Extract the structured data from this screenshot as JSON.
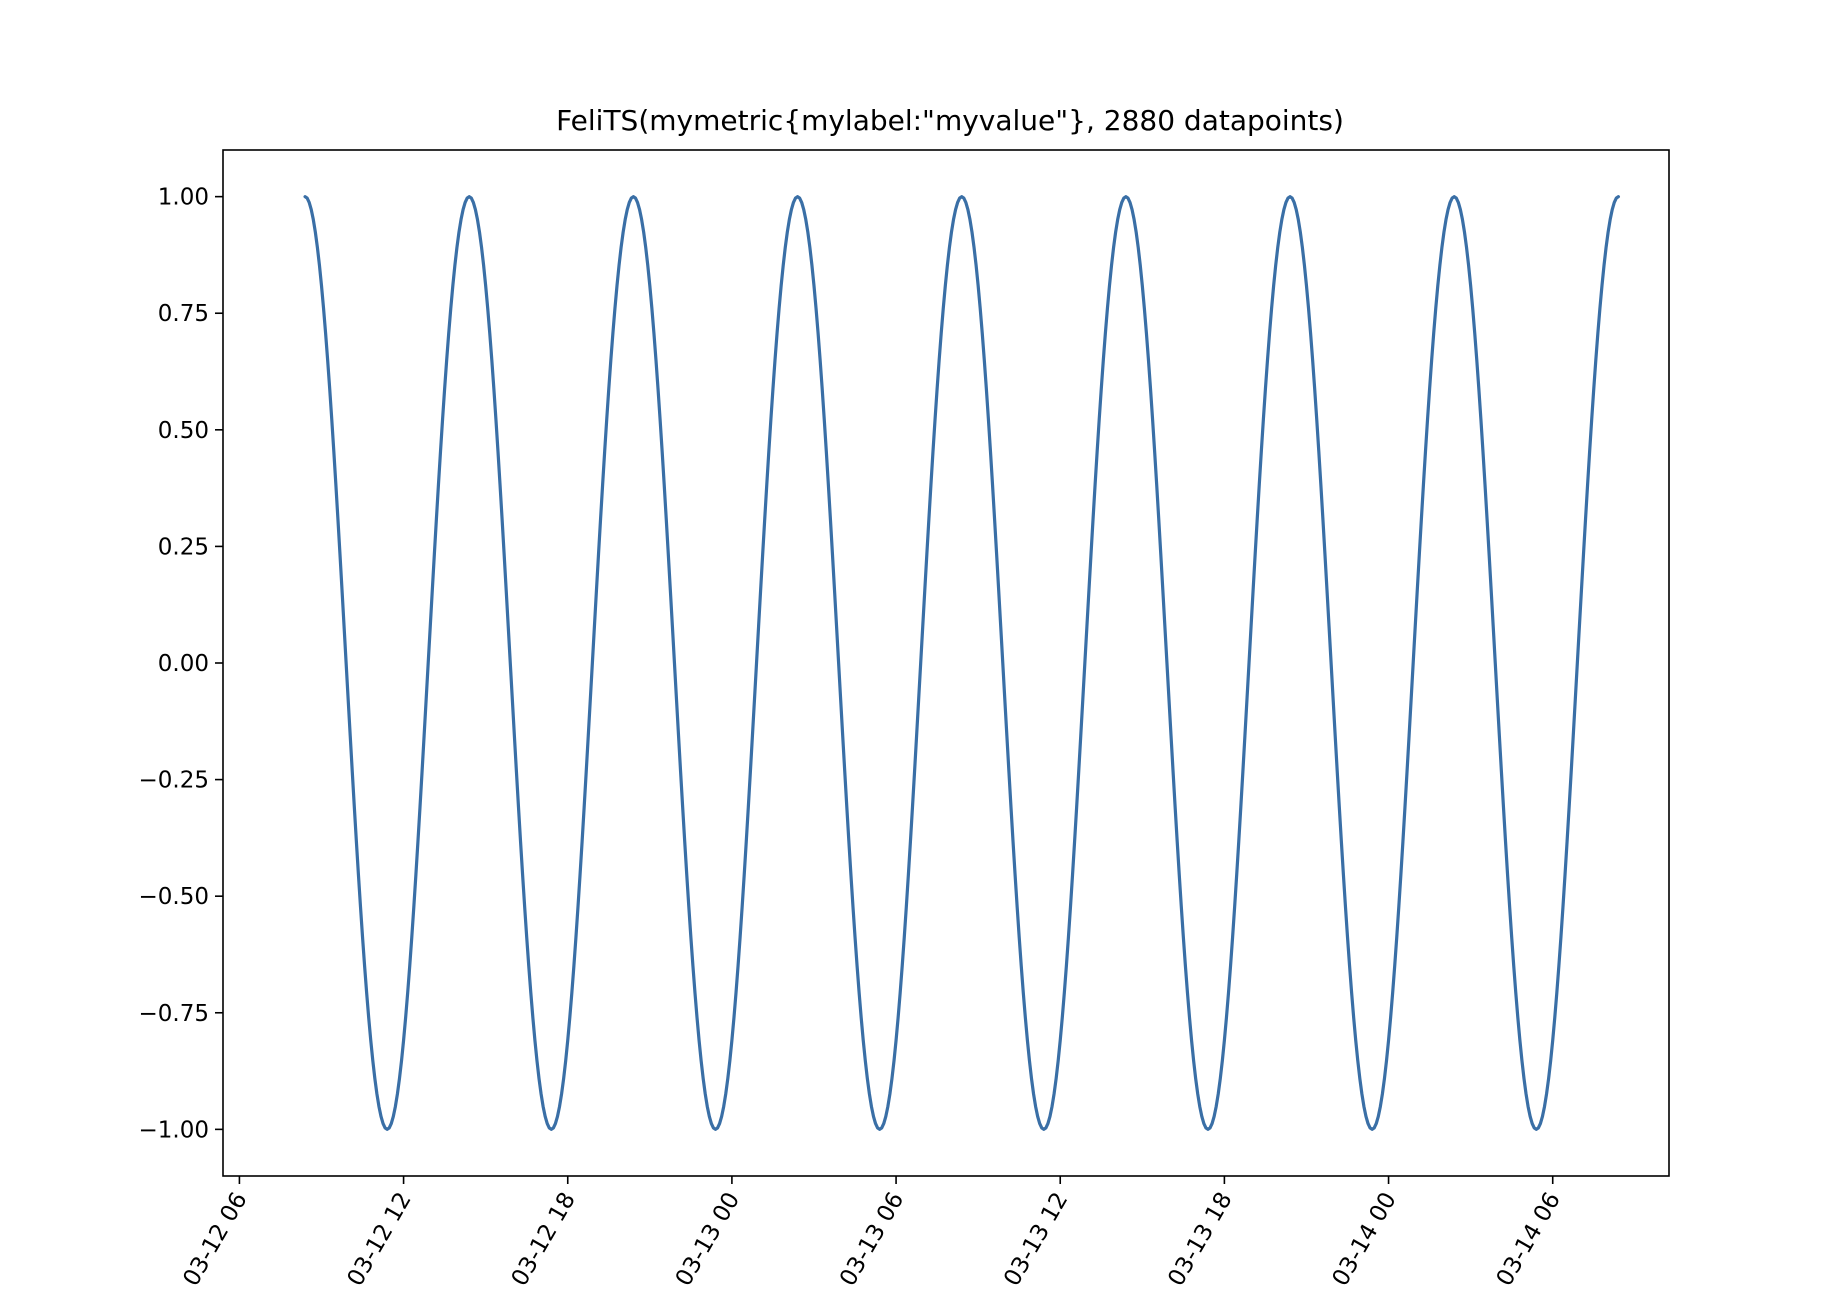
{
  "chart_data": {
    "type": "line",
    "title": "FeliTS(mymetric{mylabel:\"myvalue\"}, 2880 datapoints)",
    "xlabel": "",
    "ylabel": "",
    "x_range": [
      "2024-03-12T05:24",
      "2024-03-14T10:15"
    ],
    "ylim": [
      -1.1,
      1.1
    ],
    "x_ticks": [
      {
        "value": "2024-03-12T06:00",
        "label": "03-12 06"
      },
      {
        "value": "2024-03-12T12:00",
        "label": "03-12 12"
      },
      {
        "value": "2024-03-12T18:00",
        "label": "03-12 18"
      },
      {
        "value": "2024-03-13T00:00",
        "label": "03-13 00"
      },
      {
        "value": "2024-03-13T06:00",
        "label": "03-13 06"
      },
      {
        "value": "2024-03-13T12:00",
        "label": "03-13 12"
      },
      {
        "value": "2024-03-13T18:00",
        "label": "03-13 18"
      },
      {
        "value": "2024-03-14T00:00",
        "label": "03-14 00"
      },
      {
        "value": "2024-03-14T06:00",
        "label": "03-14 06"
      }
    ],
    "y_ticks": [
      {
        "value": 1.0,
        "label": "1.00"
      },
      {
        "value": 0.75,
        "label": "0.75"
      },
      {
        "value": 0.5,
        "label": "0.50"
      },
      {
        "value": 0.25,
        "label": "0.25"
      },
      {
        "value": 0.0,
        "label": "0.00"
      },
      {
        "value": -0.25,
        "label": "−0.25"
      },
      {
        "value": -0.5,
        "label": "−0.50"
      },
      {
        "value": -0.75,
        "label": "−0.75"
      },
      {
        "value": -1.0,
        "label": "−1.00"
      }
    ],
    "grid": false,
    "series": [
      {
        "color": "#3a6fa6",
        "x": [
          "2024-03-12T08:24",
          "2024-03-12T11:24",
          "2024-03-12T14:24",
          "2024-03-12T17:24",
          "2024-03-12T20:24",
          "2024-03-12T23:24",
          "2024-03-13T02:24",
          "2024-03-13T05:24",
          "2024-03-13T08:24",
          "2024-03-13T11:24",
          "2024-03-13T14:24",
          "2024-03-13T17:24",
          "2024-03-13T20:24",
          "2024-03-13T23:24",
          "2024-03-14T02:24",
          "2024-03-14T05:24",
          "2024-03-14T08:24"
        ],
        "y": [
          1,
          -1,
          1,
          -1,
          1,
          -1,
          1,
          -1,
          1,
          -1,
          1,
          -1,
          1,
          -1,
          1,
          -1,
          1
        ]
      }
    ]
  }
}
